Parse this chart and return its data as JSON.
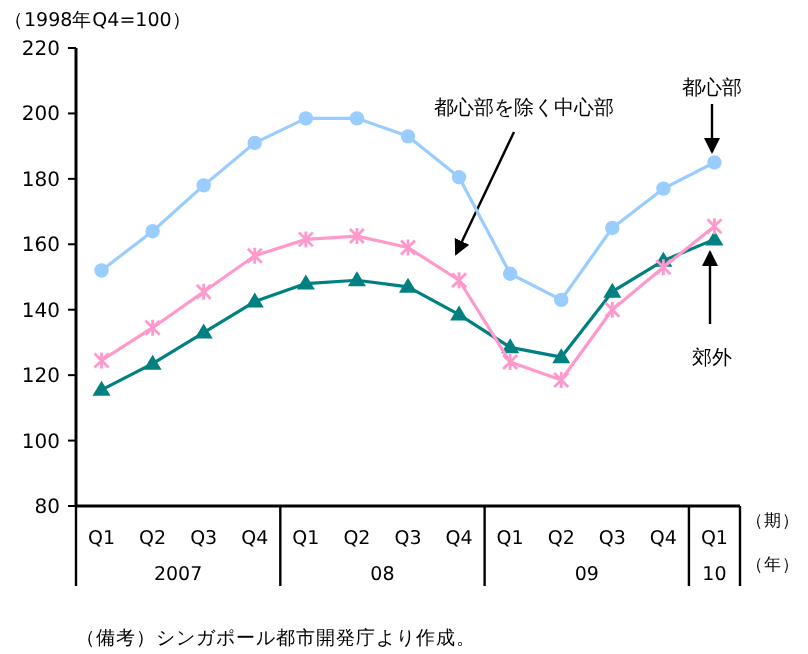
{
  "chart_data": {
    "type": "line",
    "ylabel": "（1998年Q4=100）",
    "categories": [
      "Q1",
      "Q2",
      "Q3",
      "Q4",
      "Q1",
      "Q2",
      "Q3",
      "Q4",
      "Q1",
      "Q2",
      "Q3",
      "Q4",
      "Q1"
    ],
    "series": [
      {
        "name": "都心部",
        "color": "#99ccff",
        "marker": "circle",
        "values": [
          152,
          164,
          178,
          191,
          198.5,
          198.5,
          193,
          180.5,
          151,
          143,
          165,
          177,
          185
        ]
      },
      {
        "name": "都心部を除く中心部",
        "color": "#ff99cc",
        "marker": "cross",
        "values": [
          124.5,
          134.5,
          145.5,
          156.5,
          161.5,
          162.5,
          159,
          149,
          124,
          118.5,
          140,
          153,
          165.5
        ]
      },
      {
        "name": "郊外",
        "color": "#008080",
        "marker": "triangle",
        "values": [
          115.5,
          123.5,
          133,
          142.5,
          148,
          149,
          147,
          138.5,
          128.5,
          125.5,
          145.5,
          155,
          161.5
        ]
      }
    ],
    "ylim": [
      80,
      220
    ],
    "yticks": [
      80,
      100,
      120,
      140,
      160,
      180,
      200,
      220
    ],
    "grid": false,
    "legend": false,
    "annotations": [
      "2007",
      "08",
      "09",
      "10",
      "（期）",
      "（年）",
      "（備考）シンガポール都市開発庁より作成。"
    ]
  }
}
